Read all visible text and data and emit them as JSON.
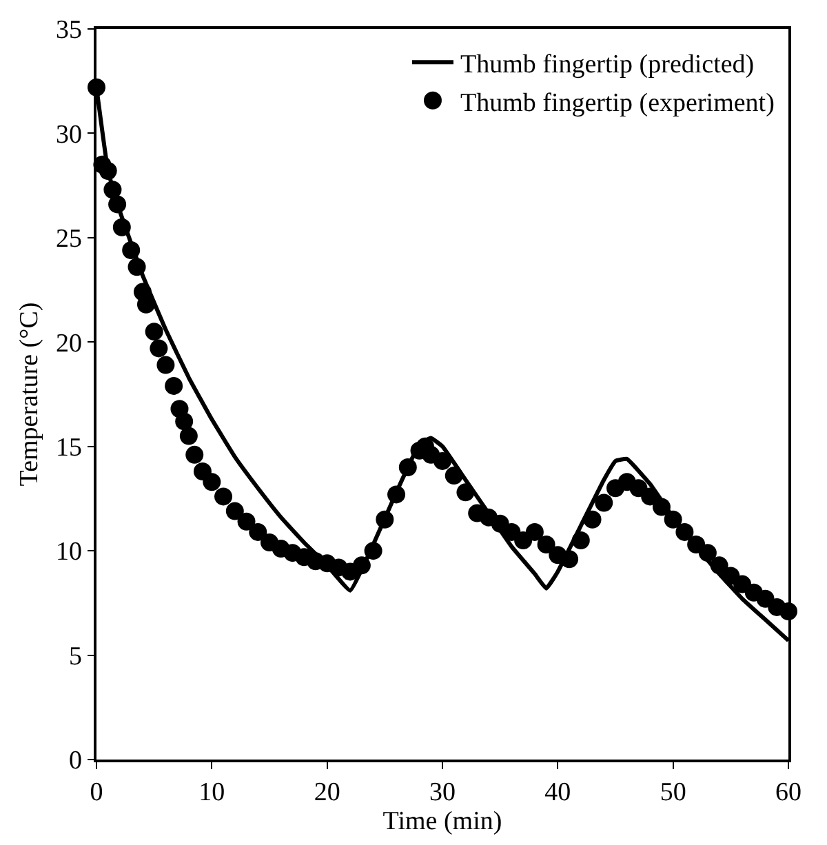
{
  "chart_data": {
    "type": "scatter",
    "xlabel": "Time (min)",
    "ylabel": "Temperature (°C)",
    "xlim": [
      0,
      60
    ],
    "xticks": [
      0,
      10,
      20,
      30,
      40,
      50,
      60
    ],
    "ylim": [
      0,
      35
    ],
    "yticks": [
      0,
      5,
      10,
      15,
      20,
      25,
      30,
      35
    ],
    "legend": "top right",
    "series": [
      {
        "name": "Thumb fingertip (predicted)",
        "type": "line",
        "color": "#000000",
        "marker": "none",
        "line_style": "solid",
        "x": [
          0,
          1,
          2,
          4,
          6,
          8,
          10,
          12,
          14,
          16,
          18,
          20,
          22,
          24,
          26,
          28,
          29,
          30,
          32,
          34,
          36,
          38,
          39,
          40,
          42,
          44,
          45,
          46,
          48,
          50,
          52,
          54,
          56,
          58,
          60
        ],
        "values": [
          32.2,
          28.2,
          26.3,
          23.2,
          20.6,
          18.3,
          16.3,
          14.5,
          13.0,
          11.6,
          10.4,
          9.3,
          8.1,
          10.3,
          12.8,
          15.1,
          15.4,
          15.0,
          13.4,
          11.8,
          10.2,
          8.9,
          8.2,
          9.0,
          11.2,
          13.4,
          14.3,
          14.4,
          13.2,
          11.6,
          10.2,
          8.9,
          7.7,
          6.7,
          5.7
        ]
      },
      {
        "name": "Thumb fingertip (experiment)",
        "color": "#000000",
        "marker": "circle",
        "x": [
          0,
          0.5,
          1,
          1.4,
          1.8,
          2.2,
          3,
          3.5,
          4,
          4.3,
          5,
          5.4,
          6,
          6.7,
          7.2,
          7.6,
          8,
          8.5,
          9.2,
          10,
          11,
          12,
          13,
          14,
          15,
          16,
          17,
          18,
          19,
          20,
          21,
          22,
          23,
          24,
          25,
          26,
          27,
          28,
          28.5,
          29,
          30,
          31,
          32,
          33,
          34,
          35,
          36,
          37,
          38,
          39,
          40,
          41,
          42,
          43,
          44,
          45,
          46,
          47,
          48,
          49,
          50,
          51,
          52,
          53,
          54,
          55,
          56,
          57,
          58,
          59,
          60
        ],
        "values": [
          32.2,
          28.5,
          28.2,
          27.3,
          26.6,
          25.5,
          24.4,
          23.6,
          22.4,
          21.8,
          20.5,
          19.7,
          18.9,
          17.9,
          16.8,
          16.2,
          15.5,
          14.6,
          13.8,
          13.3,
          12.6,
          11.9,
          11.4,
          10.9,
          10.4,
          10.1,
          9.9,
          9.7,
          9.5,
          9.4,
          9.2,
          9.0,
          9.3,
          10.0,
          11.5,
          12.7,
          14.0,
          14.8,
          15.0,
          14.6,
          14.3,
          13.6,
          12.8,
          11.8,
          11.6,
          11.3,
          10.9,
          10.5,
          10.9,
          10.3,
          9.8,
          9.6,
          10.5,
          11.5,
          12.3,
          13.0,
          13.3,
          13.0,
          12.6,
          12.1,
          11.5,
          10.9,
          10.3,
          9.9,
          9.3,
          8.8,
          8.4,
          8.0,
          7.7,
          7.3,
          7.1
        ]
      }
    ]
  }
}
